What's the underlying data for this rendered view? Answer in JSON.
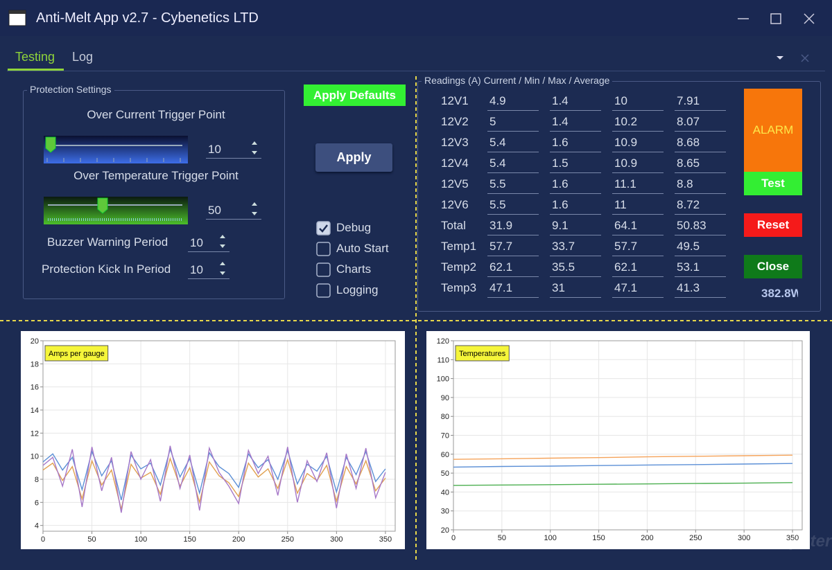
{
  "window": {
    "title": "Anti-Melt App v2.7 - Cybenetics LTD"
  },
  "tabs": [
    "Testing",
    "Log"
  ],
  "protection": {
    "title": "Protection Settings",
    "over_current_label": "Over Current Trigger Point",
    "over_current_value": 10,
    "over_temp_label": "Over Temperature Trigger Point",
    "over_temp_value": 50,
    "buzzer_label": "Buzzer Warning Period",
    "buzzer_value": 10,
    "kick_label": "Protection Kick In Period",
    "kick_value": 10
  },
  "buttons": {
    "apply_defaults": "Apply Defaults",
    "apply": "Apply",
    "alarm": "ALARM",
    "test": "Test",
    "reset": "Reset",
    "close": "Close"
  },
  "checkboxes": [
    {
      "label": "Debug",
      "checked": true
    },
    {
      "label": "Auto Start",
      "checked": false
    },
    {
      "label": "Charts",
      "checked": false
    },
    {
      "label": "Logging",
      "checked": false
    }
  ],
  "readings": {
    "title": "Readings (A) Current / Min / Max / Average",
    "rows": [
      [
        "12V1",
        4.9,
        1.4,
        10,
        7.91
      ],
      [
        "12V2",
        5,
        1.4,
        10.2,
        8.07
      ],
      [
        "12V3",
        5.4,
        1.6,
        10.9,
        8.68
      ],
      [
        "12V4",
        5.4,
        1.5,
        10.9,
        8.65
      ],
      [
        "12V5",
        5.5,
        1.6,
        11.1,
        8.8
      ],
      [
        "12V6",
        5.5,
        1.6,
        11,
        8.72
      ],
      [
        "Total",
        31.9,
        9.1,
        64.1,
        50.83
      ],
      [
        "Temp1",
        57.7,
        33.7,
        57.7,
        49.5
      ],
      [
        "Temp2",
        62.1,
        35.5,
        62.1,
        53.1
      ],
      [
        "Temp3",
        47.1,
        31,
        47.1,
        41.3
      ]
    ]
  },
  "power": "382.8W",
  "watermark": "ComputerBase",
  "chart_data": [
    {
      "type": "line",
      "title": "Amps per gauge",
      "x": [
        0,
        10,
        20,
        30,
        40,
        50,
        60,
        70,
        80,
        90,
        100,
        110,
        120,
        130,
        140,
        150,
        160,
        170,
        180,
        190,
        200,
        210,
        220,
        230,
        240,
        250,
        260,
        270,
        280,
        290,
        300,
        310,
        320,
        330,
        340,
        350
      ],
      "series": [
        {
          "color": "#5b8fd6",
          "values": [
            9.5,
            10.2,
            8.8,
            9.9,
            7.1,
            10.4,
            8.3,
            9.6,
            6.2,
            10.1,
            8.9,
            9.4,
            7.5,
            10.6,
            8.2,
            9.8,
            6.8,
            10.3,
            9.1,
            8.5,
            7.3,
            10.2,
            9.0,
            9.7,
            8.0,
            10.5,
            7.6,
            9.3,
            8.7,
            10.0,
            6.9,
            9.9,
            8.4,
            10.4,
            7.8,
            8.9
          ]
        },
        {
          "color": "#e0a050",
          "values": [
            8.8,
            9.4,
            7.9,
            9.1,
            6.3,
            9.6,
            7.5,
            8.8,
            5.4,
            9.3,
            8.1,
            8.6,
            6.7,
            9.8,
            7.4,
            9.0,
            6.0,
            9.5,
            8.3,
            7.7,
            6.5,
            9.4,
            8.2,
            8.9,
            7.2,
            9.7,
            6.8,
            8.5,
            7.9,
            9.2,
            6.1,
            9.1,
            7.6,
            9.6,
            7.0,
            8.1
          ]
        },
        {
          "color": "#a678c8",
          "values": [
            9.2,
            9.9,
            7.4,
            10.6,
            5.6,
            10.8,
            7.0,
            9.9,
            5.1,
            10.4,
            8.0,
            9.7,
            6.1,
            10.9,
            7.2,
            10.1,
            5.3,
            10.7,
            8.6,
            7.4,
            5.9,
            10.5,
            8.5,
            10.0,
            6.6,
            10.8,
            6.0,
            9.6,
            7.8,
            10.3,
            5.5,
            10.2,
            7.2,
            10.7,
            6.4,
            8.6
          ]
        }
      ],
      "xlim": [
        0,
        360
      ],
      "xticks": [
        0,
        50,
        100,
        150,
        200,
        250,
        300,
        350
      ],
      "ylim": [
        3.5,
        20
      ],
      "yticks": [
        4,
        6,
        8,
        10,
        12,
        14,
        16,
        18,
        20
      ],
      "grid": true
    },
    {
      "type": "line",
      "title": "Temperatures",
      "x": [
        0,
        50,
        100,
        150,
        200,
        250,
        300,
        350
      ],
      "series": [
        {
          "color": "#f5a35a",
          "values": [
            57.3,
            57.6,
            57.9,
            58.2,
            58.6,
            58.9,
            59.2,
            59.5
          ]
        },
        {
          "color": "#5b8fd6",
          "values": [
            53.2,
            53.5,
            53.7,
            54.0,
            54.3,
            54.5,
            54.8,
            55.1
          ]
        },
        {
          "color": "#4caf50",
          "values": [
            43.5,
            43.7,
            43.9,
            44.1,
            44.3,
            44.5,
            44.7,
            45.0
          ]
        }
      ],
      "xlim": [
        0,
        360
      ],
      "xticks": [
        0,
        50,
        100,
        150,
        200,
        250,
        300,
        350
      ],
      "ylim": [
        20,
        120
      ],
      "yticks": [
        20,
        30,
        40,
        50,
        60,
        70,
        80,
        90,
        100,
        110,
        120
      ],
      "grid": true
    }
  ]
}
